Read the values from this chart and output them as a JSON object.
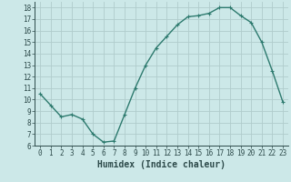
{
  "x": [
    0,
    1,
    2,
    3,
    4,
    5,
    6,
    7,
    8,
    9,
    10,
    11,
    12,
    13,
    14,
    15,
    16,
    17,
    18,
    19,
    20,
    21,
    22,
    23
  ],
  "y": [
    10.5,
    9.5,
    8.5,
    8.7,
    8.3,
    7.0,
    6.3,
    6.4,
    8.7,
    11.0,
    13.0,
    14.5,
    15.5,
    16.5,
    17.2,
    17.3,
    17.5,
    18.0,
    18.0,
    17.3,
    16.7,
    15.0,
    12.5,
    9.8
  ],
  "line_color": "#2d7a6e",
  "marker": "+",
  "marker_size": 3,
  "bg_color": "#cce8e8",
  "grid_color": "#b0cccc",
  "xlabel": "Humidex (Indice chaleur)",
  "xlim": [
    -0.5,
    23.5
  ],
  "ylim": [
    6,
    18.5
  ],
  "yticks": [
    6,
    7,
    8,
    9,
    10,
    11,
    12,
    13,
    14,
    15,
    16,
    17,
    18
  ],
  "xticks": [
    0,
    1,
    2,
    3,
    4,
    5,
    6,
    7,
    8,
    9,
    10,
    11,
    12,
    13,
    14,
    15,
    16,
    17,
    18,
    19,
    20,
    21,
    22,
    23
  ],
  "tick_label_fontsize": 5.5,
  "xlabel_fontsize": 7,
  "line_width": 1.0,
  "marker_edge_width": 0.8
}
